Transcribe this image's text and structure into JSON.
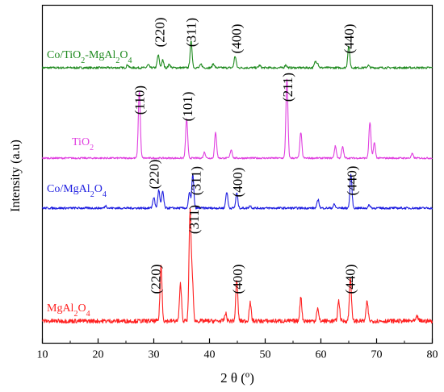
{
  "chart_data": {
    "type": "line",
    "title": "",
    "xlabel": "2 θ (º)",
    "ylabel": "Intensity (a.u)",
    "xlim": [
      10,
      80
    ],
    "x_ticks": [
      10,
      20,
      30,
      40,
      50,
      60,
      70,
      80
    ],
    "y_ticks_visible": false,
    "grid": false,
    "legend": "none",
    "series": [
      {
        "name": "Co/TiO₂-MgAl₂O₄",
        "color": "#1f8a1f",
        "baseline": 0.0,
        "noise": 0.018,
        "peaks": [
          [
            25.3,
            0.05
          ],
          [
            29.0,
            0.05
          ],
          [
            30.8,
            0.22
          ],
          [
            31.6,
            0.13
          ],
          [
            32.8,
            0.06
          ],
          [
            36.7,
            0.45
          ],
          [
            38.5,
            0.06
          ],
          [
            40.7,
            0.07
          ],
          [
            44.6,
            0.2
          ],
          [
            49.0,
            0.04
          ],
          [
            53.7,
            0.05
          ],
          [
            59.0,
            0.1
          ],
          [
            59.4,
            0.08
          ],
          [
            65.0,
            0.38
          ],
          [
            68.5,
            0.04
          ]
        ],
        "peak_labels": [
          {
            "text": "(220)",
            "x": 31.0
          },
          {
            "text": "(311)",
            "x": 36.7
          },
          {
            "text": "(400)",
            "x": 44.8
          },
          {
            "text": "(440)",
            "x": 65.0
          }
        ]
      },
      {
        "name": "TiO₂",
        "color": "#e040e0",
        "baseline": 0.0,
        "noise": 0.01,
        "peaks": [
          [
            27.4,
            0.78
          ],
          [
            35.9,
            0.46
          ],
          [
            39.1,
            0.07
          ],
          [
            41.1,
            0.3
          ],
          [
            43.9,
            0.1
          ],
          [
            53.9,
            0.92
          ],
          [
            56.4,
            0.3
          ],
          [
            62.6,
            0.14
          ],
          [
            63.9,
            0.13
          ],
          [
            68.8,
            0.42
          ],
          [
            69.6,
            0.18
          ],
          [
            76.4,
            0.05
          ]
        ],
        "peak_labels": [
          {
            "text": "(110)",
            "x": 27.4
          },
          {
            "text": "(101)",
            "x": 36.0
          },
          {
            "text": "(211)",
            "x": 54.0
          }
        ]
      },
      {
        "name": "Co/MgAl₂O₄",
        "color": "#2020e0",
        "baseline": 0.0,
        "noise": 0.018,
        "peaks": [
          [
            21.4,
            0.04
          ],
          [
            30.0,
            0.18
          ],
          [
            30.9,
            0.3
          ],
          [
            31.6,
            0.28
          ],
          [
            37.0,
            0.55
          ],
          [
            36.4,
            0.25
          ],
          [
            43.1,
            0.27
          ],
          [
            44.9,
            0.25
          ],
          [
            47.3,
            0.04
          ],
          [
            59.5,
            0.14
          ],
          [
            62.4,
            0.06
          ],
          [
            65.4,
            0.55
          ],
          [
            68.7,
            0.05
          ]
        ],
        "peak_labels": [
          {
            "text": "(220)",
            "x": 30.0
          },
          {
            "text": "(311)",
            "x": 37.5
          },
          {
            "text": "(400)",
            "x": 45.0
          },
          {
            "text": "(440)",
            "x": 65.5
          }
        ]
      },
      {
        "name": "MgAl₂O₄",
        "color": "#ff2020",
        "baseline": 0.0,
        "noise": 0.02,
        "peaks": [
          [
            31.3,
            0.52
          ],
          [
            34.8,
            0.35
          ],
          [
            36.5,
            1.0
          ],
          [
            36.9,
            0.4
          ],
          [
            42.9,
            0.07
          ],
          [
            44.9,
            0.38
          ],
          [
            47.3,
            0.17
          ],
          [
            56.4,
            0.22
          ],
          [
            59.4,
            0.12
          ],
          [
            63.2,
            0.19
          ],
          [
            65.3,
            0.41
          ],
          [
            68.3,
            0.18
          ],
          [
            77.3,
            0.04
          ]
        ],
        "peak_labels": [
          {
            "text": "(220)",
            "x": 30.3
          },
          {
            "text": "(311)",
            "x": 37.2
          },
          {
            "text": "(400)",
            "x": 45.0
          },
          {
            "text": "(440)",
            "x": 65.2
          }
        ]
      }
    ]
  }
}
